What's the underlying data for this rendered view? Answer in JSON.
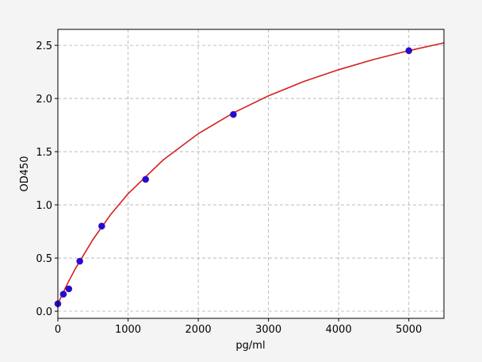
{
  "chart_data": {
    "type": "scatter",
    "title": "",
    "xlabel": "pg/ml",
    "ylabel": "OD450",
    "xlim": [
      0,
      5500
    ],
    "ylim": [
      -0.067,
      2.65
    ],
    "grid": true,
    "x_ticks": [
      "0",
      "1000",
      "2000",
      "3000",
      "4000",
      "5000"
    ],
    "y_ticks": [
      "0.0",
      "0.5",
      "1.0",
      "1.5",
      "2.0",
      "2.5"
    ],
    "colors": {
      "points": "#1a10d8",
      "curve": "#d42020",
      "grid": "#b0b0b0"
    },
    "series": [
      {
        "type": "scatter",
        "x": [
          0,
          78,
          156,
          312,
          625,
          1250,
          2500,
          5000
        ],
        "y": [
          0.07,
          0.16,
          0.21,
          0.47,
          0.8,
          1.24,
          1.85,
          2.45
        ]
      },
      {
        "type": "line",
        "x": [
          0,
          125,
          250,
          500,
          750,
          1000,
          1500,
          2000,
          2500,
          3000,
          3500,
          4000,
          4500,
          5000,
          5500
        ],
        "y": [
          0.07,
          0.244,
          0.401,
          0.675,
          0.907,
          1.104,
          1.422,
          1.669,
          1.865,
          2.025,
          2.159,
          2.271,
          2.367,
          2.45,
          2.523
        ]
      }
    ]
  }
}
